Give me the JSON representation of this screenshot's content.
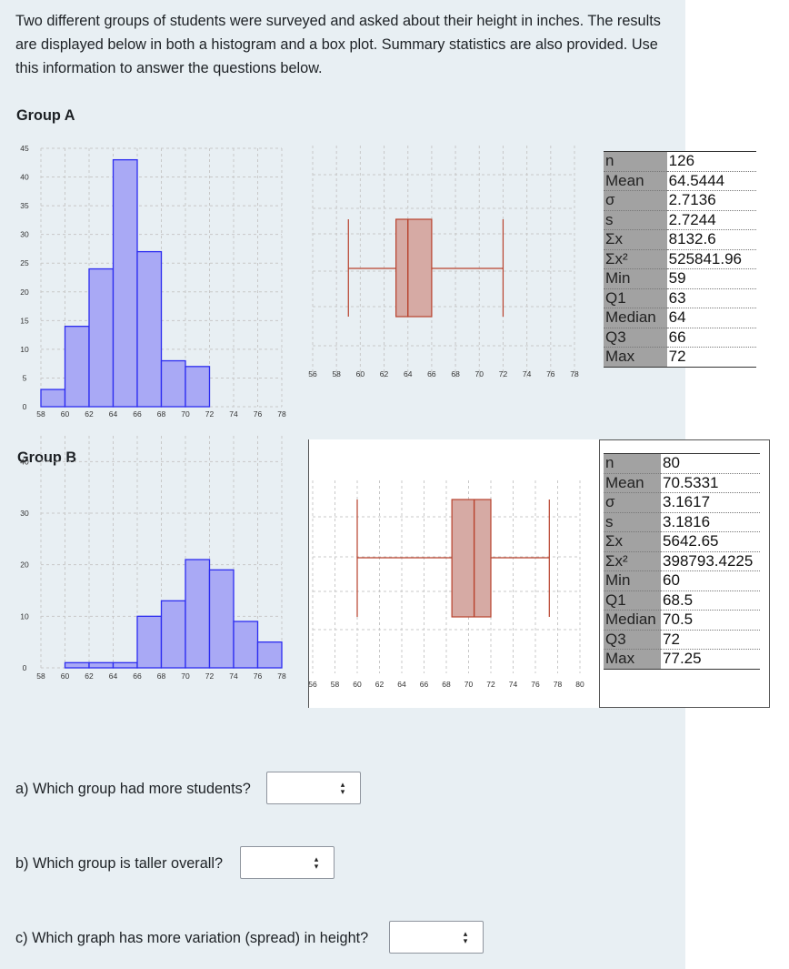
{
  "intro": "Two different groups of students were surveyed and asked about their height in inches. The results are displayed below in both a histogram and a box plot. Summary statistics are also provided. Use this information to answer the questions below.",
  "colors": {
    "histogram_fill": "#a9a9f5",
    "histogram_stroke": "#2c2cf0",
    "box_fill": "#d6aaa4",
    "box_stroke": "#b8412c",
    "panel_bg": "#e8eff3"
  },
  "chart_data": [
    {
      "group": "Group A",
      "type": "bar",
      "subtype": "histogram",
      "bin_width": 2,
      "bins": [
        {
          "start": 58,
          "end": 60,
          "count": 3
        },
        {
          "start": 60,
          "end": 62,
          "count": 14
        },
        {
          "start": 62,
          "end": 64,
          "count": 24
        },
        {
          "start": 64,
          "end": 66,
          "count": 43
        },
        {
          "start": 66,
          "end": 68,
          "count": 27
        },
        {
          "start": 68,
          "end": 70,
          "count": 8
        },
        {
          "start": 70,
          "end": 72,
          "count": 7
        }
      ],
      "xlim": [
        58,
        78
      ],
      "ylim": [
        0,
        45
      ],
      "x_ticks": [
        "58",
        "60",
        "62",
        "64",
        "66",
        "68",
        "70",
        "72",
        "74",
        "76",
        "78"
      ],
      "y_ticks": [
        "0",
        "5",
        "10",
        "15",
        "20",
        "25",
        "30",
        "35",
        "40",
        "45"
      ],
      "grid": true
    },
    {
      "group": "Group A",
      "type": "box",
      "min": 59,
      "q1": 63,
      "median": 64,
      "q3": 66,
      "max": 72,
      "xlim": [
        56,
        78
      ],
      "x_ticks": [
        "56",
        "58",
        "60",
        "62",
        "64",
        "66",
        "68",
        "70",
        "72",
        "74",
        "76",
        "78"
      ],
      "grid": true
    },
    {
      "group": "Group A",
      "type": "table",
      "rows": [
        {
          "label": "n",
          "value": "126"
        },
        {
          "label": "Mean",
          "value": "64.5444"
        },
        {
          "label": "σ",
          "value": "2.7136"
        },
        {
          "label": "s",
          "value": "2.7244"
        },
        {
          "label": "Σx",
          "value": "8132.6"
        },
        {
          "label": "Σx²",
          "value": "525841.96"
        },
        {
          "label": "Min",
          "value": "59"
        },
        {
          "label": "Q1",
          "value": "63"
        },
        {
          "label": "Median",
          "value": "64"
        },
        {
          "label": "Q3",
          "value": "66"
        },
        {
          "label": "Max",
          "value": "72"
        }
      ]
    },
    {
      "group": "Group B",
      "type": "bar",
      "subtype": "histogram",
      "bin_width": 2,
      "bins": [
        {
          "start": 60,
          "end": 62,
          "count": 1
        },
        {
          "start": 62,
          "end": 64,
          "count": 1
        },
        {
          "start": 64,
          "end": 66,
          "count": 1
        },
        {
          "start": 66,
          "end": 68,
          "count": 10
        },
        {
          "start": 68,
          "end": 70,
          "count": 13
        },
        {
          "start": 70,
          "end": 72,
          "count": 21
        },
        {
          "start": 72,
          "end": 74,
          "count": 19
        },
        {
          "start": 74,
          "end": 76,
          "count": 9
        },
        {
          "start": 76,
          "end": 78,
          "count": 5
        }
      ],
      "xlim": [
        58,
        78
      ],
      "ylim": [
        0,
        45
      ],
      "x_ticks": [
        "58",
        "60",
        "62",
        "64",
        "66",
        "68",
        "70",
        "72",
        "74",
        "76",
        "78"
      ],
      "y_ticks": [
        "0",
        "10",
        "20",
        "30",
        "40"
      ],
      "grid": true
    },
    {
      "group": "Group B",
      "type": "box",
      "min": 60,
      "q1": 68.5,
      "median": 70.5,
      "q3": 72,
      "max": 77.25,
      "xlim": [
        56,
        80
      ],
      "x_ticks": [
        "56",
        "58",
        "60",
        "62",
        "64",
        "66",
        "68",
        "70",
        "72",
        "74",
        "76",
        "78",
        "80"
      ],
      "grid": true
    },
    {
      "group": "Group B",
      "type": "table",
      "rows": [
        {
          "label": "n",
          "value": "80"
        },
        {
          "label": "Mean",
          "value": "70.5331"
        },
        {
          "label": "σ",
          "value": "3.1617"
        },
        {
          "label": "s",
          "value": "3.1816"
        },
        {
          "label": "Σx",
          "value": "5642.65"
        },
        {
          "label": "Σx²",
          "value": "398793.4225"
        },
        {
          "label": "Min",
          "value": "60"
        },
        {
          "label": "Q1",
          "value": "68.5"
        },
        {
          "label": "Median",
          "value": "70.5"
        },
        {
          "label": "Q3",
          "value": "72"
        },
        {
          "label": "Max",
          "value": "77.25"
        }
      ]
    }
  ],
  "group_a_title": "Group A",
  "group_b_title": "Group B",
  "questions": [
    {
      "text": "a) Which group had more students?",
      "selected": ""
    },
    {
      "text": "b) Which group is taller overall?",
      "selected": ""
    },
    {
      "text": "c) Which graph has more variation (spread) in height?",
      "selected": ""
    }
  ]
}
